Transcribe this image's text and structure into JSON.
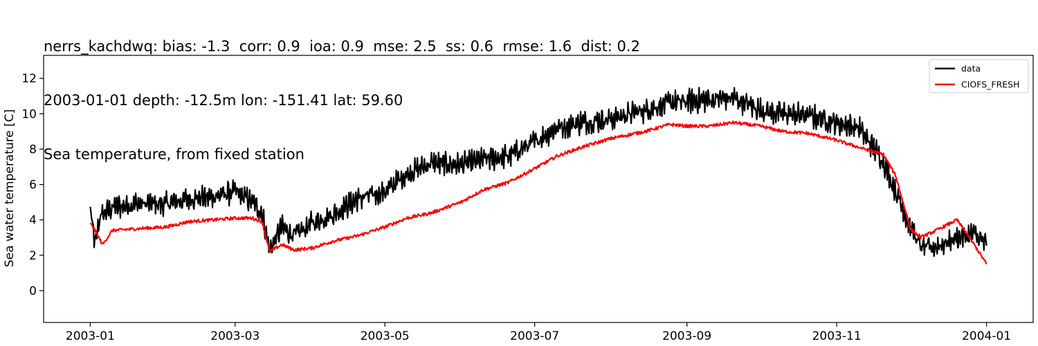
{
  "chart_data": {
    "type": "line",
    "title_lines": [
      "nerrs_kachdwq: bias: -1.3  corr: 0.9  ioa: 0.9  mse: 2.5  ss: 0.6  rmse: 1.6  dist: 0.2",
      "2003-01-01 depth: -12.5m lon: -151.41 lat: 59.60",
      "Sea temperature, from fixed station"
    ],
    "xlabel": "",
    "ylabel": "Sea water temperature [C]",
    "x_ticks": [
      "2003-01",
      "2003-03",
      "2003-05",
      "2003-07",
      "2003-09",
      "2003-11",
      "2004-01"
    ],
    "y_ticks": [
      0,
      2,
      4,
      6,
      8,
      10,
      12
    ],
    "xlim": [
      "2002-12-13",
      "2004-01-20"
    ],
    "ylim": [
      -1.8,
      13.3
    ],
    "grid": false,
    "legend_position": "top-right",
    "series": [
      {
        "name": "data",
        "color": "#000000",
        "x": [
          "2003-01-01",
          "2003-01-03",
          "2003-01-05",
          "2003-01-10",
          "2003-01-20",
          "2003-02-01",
          "2003-02-10",
          "2003-02-20",
          "2003-03-01",
          "2003-03-08",
          "2003-03-12",
          "2003-03-15",
          "2003-03-20",
          "2003-03-25",
          "2003-04-01",
          "2003-04-10",
          "2003-04-20",
          "2003-05-01",
          "2003-05-10",
          "2003-05-20",
          "2003-06-01",
          "2003-06-10",
          "2003-06-20",
          "2003-07-01",
          "2003-07-10",
          "2003-07-20",
          "2003-08-01",
          "2003-08-15",
          "2003-08-25",
          "2003-09-01",
          "2003-09-10",
          "2003-09-20",
          "2003-10-01",
          "2003-10-10",
          "2003-10-20",
          "2003-11-01",
          "2003-11-10",
          "2003-11-20",
          "2003-11-25",
          "2003-12-01",
          "2003-12-05",
          "2003-12-10",
          "2003-12-20",
          "2003-12-27",
          "2004-01-01"
        ],
        "values": [
          4.6,
          2.5,
          4.2,
          4.7,
          4.9,
          4.9,
          5.2,
          5.3,
          5.6,
          5.0,
          4.4,
          2.3,
          3.6,
          3.1,
          3.8,
          4.3,
          5.2,
          5.6,
          6.6,
          7.2,
          7.1,
          7.4,
          7.6,
          8.4,
          9.2,
          9.5,
          9.7,
          10.2,
          10.6,
          10.7,
          10.8,
          10.9,
          10.2,
          10.0,
          9.9,
          9.5,
          9.2,
          7.3,
          5.6,
          3.6,
          2.5,
          2.4,
          3.0,
          3.2,
          2.6
        ]
      },
      {
        "name": "CIOFS_FRESH",
        "color": "#ff0000",
        "x": [
          "2003-01-01",
          "2003-01-03",
          "2003-01-06",
          "2003-01-10",
          "2003-01-20",
          "2003-02-01",
          "2003-02-10",
          "2003-02-20",
          "2003-03-01",
          "2003-03-08",
          "2003-03-12",
          "2003-03-15",
          "2003-03-20",
          "2003-03-25",
          "2003-04-01",
          "2003-04-10",
          "2003-04-20",
          "2003-05-01",
          "2003-05-10",
          "2003-05-20",
          "2003-06-01",
          "2003-06-10",
          "2003-06-20",
          "2003-07-01",
          "2003-07-10",
          "2003-07-20",
          "2003-08-01",
          "2003-08-15",
          "2003-08-25",
          "2003-09-01",
          "2003-09-10",
          "2003-09-20",
          "2003-10-01",
          "2003-10-10",
          "2003-10-20",
          "2003-11-01",
          "2003-11-10",
          "2003-11-20",
          "2003-11-25",
          "2003-12-01",
          "2003-12-05",
          "2003-12-10",
          "2003-12-20",
          "2003-12-27",
          "2004-01-01"
        ],
        "values": [
          3.8,
          3.4,
          2.6,
          3.4,
          3.5,
          3.6,
          3.9,
          4.0,
          4.1,
          4.1,
          3.9,
          2.2,
          2.6,
          2.3,
          2.4,
          2.8,
          3.1,
          3.6,
          4.1,
          4.4,
          5.0,
          5.7,
          6.1,
          6.9,
          7.6,
          8.1,
          8.6,
          9.0,
          9.4,
          9.3,
          9.3,
          9.5,
          9.3,
          9.0,
          8.9,
          8.5,
          8.1,
          7.7,
          6.5,
          3.5,
          3.0,
          3.3,
          4.0,
          2.6,
          1.5
        ]
      }
    ]
  }
}
